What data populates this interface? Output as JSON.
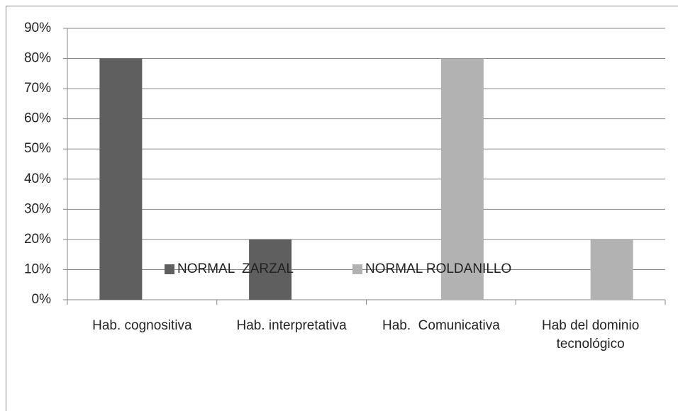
{
  "chart_data": {
    "type": "bar",
    "categories": [
      "Hab. cognositiva",
      "Hab. interpretativa",
      "Hab.  Comunicativa",
      "Hab del dominio tecnológico"
    ],
    "series": [
      {
        "name": "NORMAL  ZARZAL",
        "color": "#5f5f5f",
        "values": [
          80,
          20,
          0,
          0
        ]
      },
      {
        "name": "NORMAL ROLDANILLO",
        "color": "#b2b2b2",
        "values": [
          0,
          0,
          80,
          20
        ]
      }
    ],
    "ylim": [
      0,
      90
    ],
    "yticks": [
      {
        "value": 0,
        "label": "0%"
      },
      {
        "value": 10,
        "label": "10%"
      },
      {
        "value": 20,
        "label": "20%"
      },
      {
        "value": 30,
        "label": "30%"
      },
      {
        "value": 40,
        "label": "40%"
      },
      {
        "value": 50,
        "label": "50%"
      },
      {
        "value": 60,
        "label": "60%"
      },
      {
        "value": 70,
        "label": "70%"
      },
      {
        "value": 80,
        "label": "80%"
      },
      {
        "value": 90,
        "label": "90%"
      }
    ],
    "grid": true,
    "legend": "bottom"
  }
}
